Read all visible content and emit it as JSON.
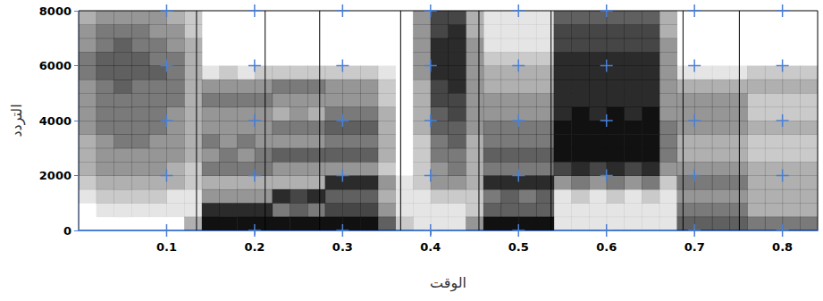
{
  "chart_data": {
    "type": "heatmap",
    "x_label": "الوقت",
    "y_label": "التردد",
    "xlim": [
      0,
      0.84
    ],
    "ylim": [
      0,
      8000
    ],
    "xticks": [
      0.1,
      0.2,
      0.3,
      0.4,
      0.5,
      0.6,
      0.7,
      0.8
    ],
    "yticks": [
      0,
      2000,
      4000,
      6000,
      8000
    ],
    "grid": true,
    "color": "#111111",
    "value_range": [
      0,
      9
    ],
    "segment_boundaries": [
      0.134,
      0.212,
      0.274,
      0.366,
      0.455,
      0.537,
      0.687,
      0.751
    ],
    "x_bins": [
      0,
      0.02,
      0.04,
      0.06,
      0.08,
      0.1,
      0.12,
      0.14,
      0.16,
      0.18,
      0.2,
      0.22,
      0.24,
      0.26,
      0.28,
      0.3,
      0.32,
      0.34,
      0.36,
      0.38,
      0.4,
      0.42,
      0.44,
      0.46,
      0.48,
      0.5,
      0.52,
      0.54,
      0.56,
      0.58,
      0.6,
      0.62,
      0.64,
      0.66,
      0.68,
      0.7,
      0.72,
      0.74,
      0.76,
      0.78,
      0.8,
      0.82,
      0.84
    ],
    "y_bins": [
      0,
      500,
      1000,
      1500,
      2000,
      2500,
      3000,
      3500,
      4000,
      4500,
      5000,
      5500,
      6000,
      6500,
      7000,
      7500,
      8000
    ],
    "cells": [
      [
        0,
        0,
        1,
        2,
        3,
        3,
        3,
        4,
        4,
        4,
        4,
        5,
        5,
        4,
        4,
        3
      ],
      [
        0,
        1,
        2,
        3,
        4,
        4,
        4,
        5,
        5,
        5,
        5,
        6,
        6,
        5,
        5,
        4
      ],
      [
        0,
        1,
        2,
        3,
        4,
        4,
        5,
        5,
        5,
        5,
        6,
        6,
        6,
        6,
        5,
        4
      ],
      [
        0,
        1,
        2,
        3,
        4,
        4,
        5,
        5,
        5,
        5,
        5,
        6,
        6,
        5,
        5,
        4
      ],
      [
        0,
        1,
        2,
        3,
        4,
        4,
        4,
        5,
        5,
        5,
        5,
        6,
        5,
        5,
        4,
        4
      ],
      [
        0,
        1,
        1,
        3,
        3,
        4,
        4,
        4,
        4,
        5,
        5,
        5,
        5,
        4,
        4,
        3
      ],
      [
        3,
        1,
        1,
        2,
        2,
        3,
        3,
        3,
        3,
        3,
        3,
        3,
        3,
        3,
        2,
        2
      ],
      [
        9,
        8,
        4,
        3,
        5,
        4,
        5,
        4,
        4,
        5,
        4,
        1,
        0,
        0,
        0,
        0
      ],
      [
        9,
        8,
        4,
        3,
        5,
        5,
        4,
        4,
        4,
        5,
        4,
        2,
        0,
        0,
        0,
        0
      ],
      [
        9,
        8,
        4,
        3,
        5,
        4,
        5,
        4,
        4,
        5,
        4,
        1,
        0,
        0,
        0,
        0
      ],
      [
        9,
        8,
        4,
        3,
        5,
        5,
        4,
        4,
        4,
        5,
        4,
        2,
        0,
        0,
        0,
        0
      ],
      [
        9,
        5,
        8,
        3,
        4,
        6,
        4,
        5,
        3,
        4,
        5,
        2,
        0,
        0,
        0,
        0
      ],
      [
        9,
        6,
        7,
        3,
        4,
        6,
        4,
        5,
        4,
        4,
        5,
        2,
        0,
        0,
        0,
        0
      ],
      [
        9,
        5,
        8,
        3,
        4,
        6,
        4,
        5,
        3,
        4,
        5,
        2,
        0,
        0,
        0,
        0
      ],
      [
        9,
        7,
        6,
        8,
        4,
        6,
        5,
        6,
        5,
        4,
        4,
        2,
        0,
        0,
        0,
        0
      ],
      [
        9,
        7,
        6,
        8,
        4,
        6,
        5,
        6,
        5,
        4,
        4,
        2,
        0,
        0,
        0,
        0
      ],
      [
        9,
        7,
        6,
        8,
        4,
        6,
        5,
        6,
        5,
        4,
        4,
        2,
        0,
        0,
        0,
        0
      ],
      [
        6,
        4,
        3,
        4,
        2,
        3,
        3,
        3,
        3,
        2,
        2,
        1,
        0,
        0,
        0,
        0
      ],
      [
        2,
        1,
        1,
        1,
        0,
        0,
        0,
        0,
        0,
        0,
        0,
        0,
        0,
        0,
        0,
        0
      ],
      [
        1,
        1,
        1,
        2,
        2,
        2,
        2,
        3,
        3,
        3,
        3,
        4,
        4,
        4,
        4,
        4
      ],
      [
        1,
        1,
        2,
        4,
        4,
        5,
        5,
        6,
        6,
        7,
        7,
        8,
        8,
        8,
        7,
        7
      ],
      [
        1,
        1,
        2,
        4,
        5,
        5,
        6,
        6,
        7,
        7,
        8,
        8,
        8,
        8,
        8,
        7
      ],
      [
        4,
        2,
        2,
        3,
        3,
        3,
        3,
        4,
        4,
        4,
        4,
        4,
        4,
        4,
        3,
        3
      ],
      [
        9,
        6,
        5,
        8,
        5,
        6,
        5,
        5,
        4,
        4,
        3,
        3,
        2,
        1,
        1,
        1
      ],
      [
        9,
        6,
        6,
        8,
        5,
        6,
        5,
        5,
        4,
        4,
        3,
        3,
        2,
        1,
        1,
        1
      ],
      [
        9,
        6,
        5,
        8,
        5,
        6,
        5,
        5,
        4,
        4,
        3,
        3,
        2,
        1,
        1,
        1
      ],
      [
        9,
        6,
        6,
        8,
        5,
        6,
        5,
        5,
        4,
        4,
        3,
        3,
        2,
        1,
        1,
        1
      ],
      [
        1,
        1,
        1,
        4,
        7,
        9,
        9,
        9,
        8,
        8,
        8,
        8,
        8,
        7,
        7,
        6
      ],
      [
        1,
        1,
        2,
        5,
        8,
        9,
        9,
        9,
        9,
        8,
        8,
        8,
        8,
        7,
        7,
        6
      ],
      [
        1,
        1,
        1,
        4,
        7,
        9,
        9,
        9,
        8,
        8,
        8,
        8,
        8,
        7,
        7,
        6
      ],
      [
        1,
        1,
        2,
        5,
        8,
        9,
        9,
        9,
        9,
        8,
        8,
        8,
        8,
        7,
        7,
        6
      ],
      [
        1,
        1,
        1,
        4,
        7,
        9,
        9,
        9,
        8,
        8,
        8,
        8,
        8,
        7,
        7,
        6
      ],
      [
        1,
        1,
        2,
        5,
        8,
        9,
        9,
        9,
        9,
        8,
        8,
        8,
        8,
        7,
        7,
        6
      ],
      [
        1,
        1,
        1,
        2,
        4,
        5,
        5,
        5,
        4,
        4,
        4,
        4,
        4,
        4,
        3,
        3
      ],
      [
        6,
        5,
        4,
        5,
        4,
        3,
        3,
        4,
        4,
        4,
        3,
        1,
        0,
        0,
        0,
        0
      ],
      [
        6,
        5,
        4,
        5,
        4,
        3,
        3,
        4,
        4,
        4,
        3,
        1,
        0,
        0,
        0,
        0
      ],
      [
        6,
        5,
        4,
        5,
        4,
        3,
        3,
        4,
        4,
        4,
        3,
        1,
        0,
        0,
        0,
        0
      ],
      [
        6,
        5,
        4,
        5,
        4,
        3,
        3,
        4,
        4,
        4,
        3,
        1,
        0,
        0,
        0,
        0
      ],
      [
        5,
        3,
        3,
        3,
        3,
        2,
        2,
        3,
        2,
        2,
        3,
        2,
        0,
        0,
        0,
        0
      ],
      [
        5,
        3,
        3,
        3,
        3,
        2,
        2,
        3,
        2,
        2,
        3,
        2,
        0,
        0,
        0,
        0
      ],
      [
        5,
        3,
        3,
        3,
        3,
        2,
        2,
        3,
        2,
        2,
        3,
        2,
        0,
        0,
        0,
        0
      ],
      [
        5,
        3,
        3,
        3,
        3,
        2,
        2,
        3,
        2,
        2,
        3,
        2,
        0,
        0,
        0,
        0
      ]
    ]
  }
}
